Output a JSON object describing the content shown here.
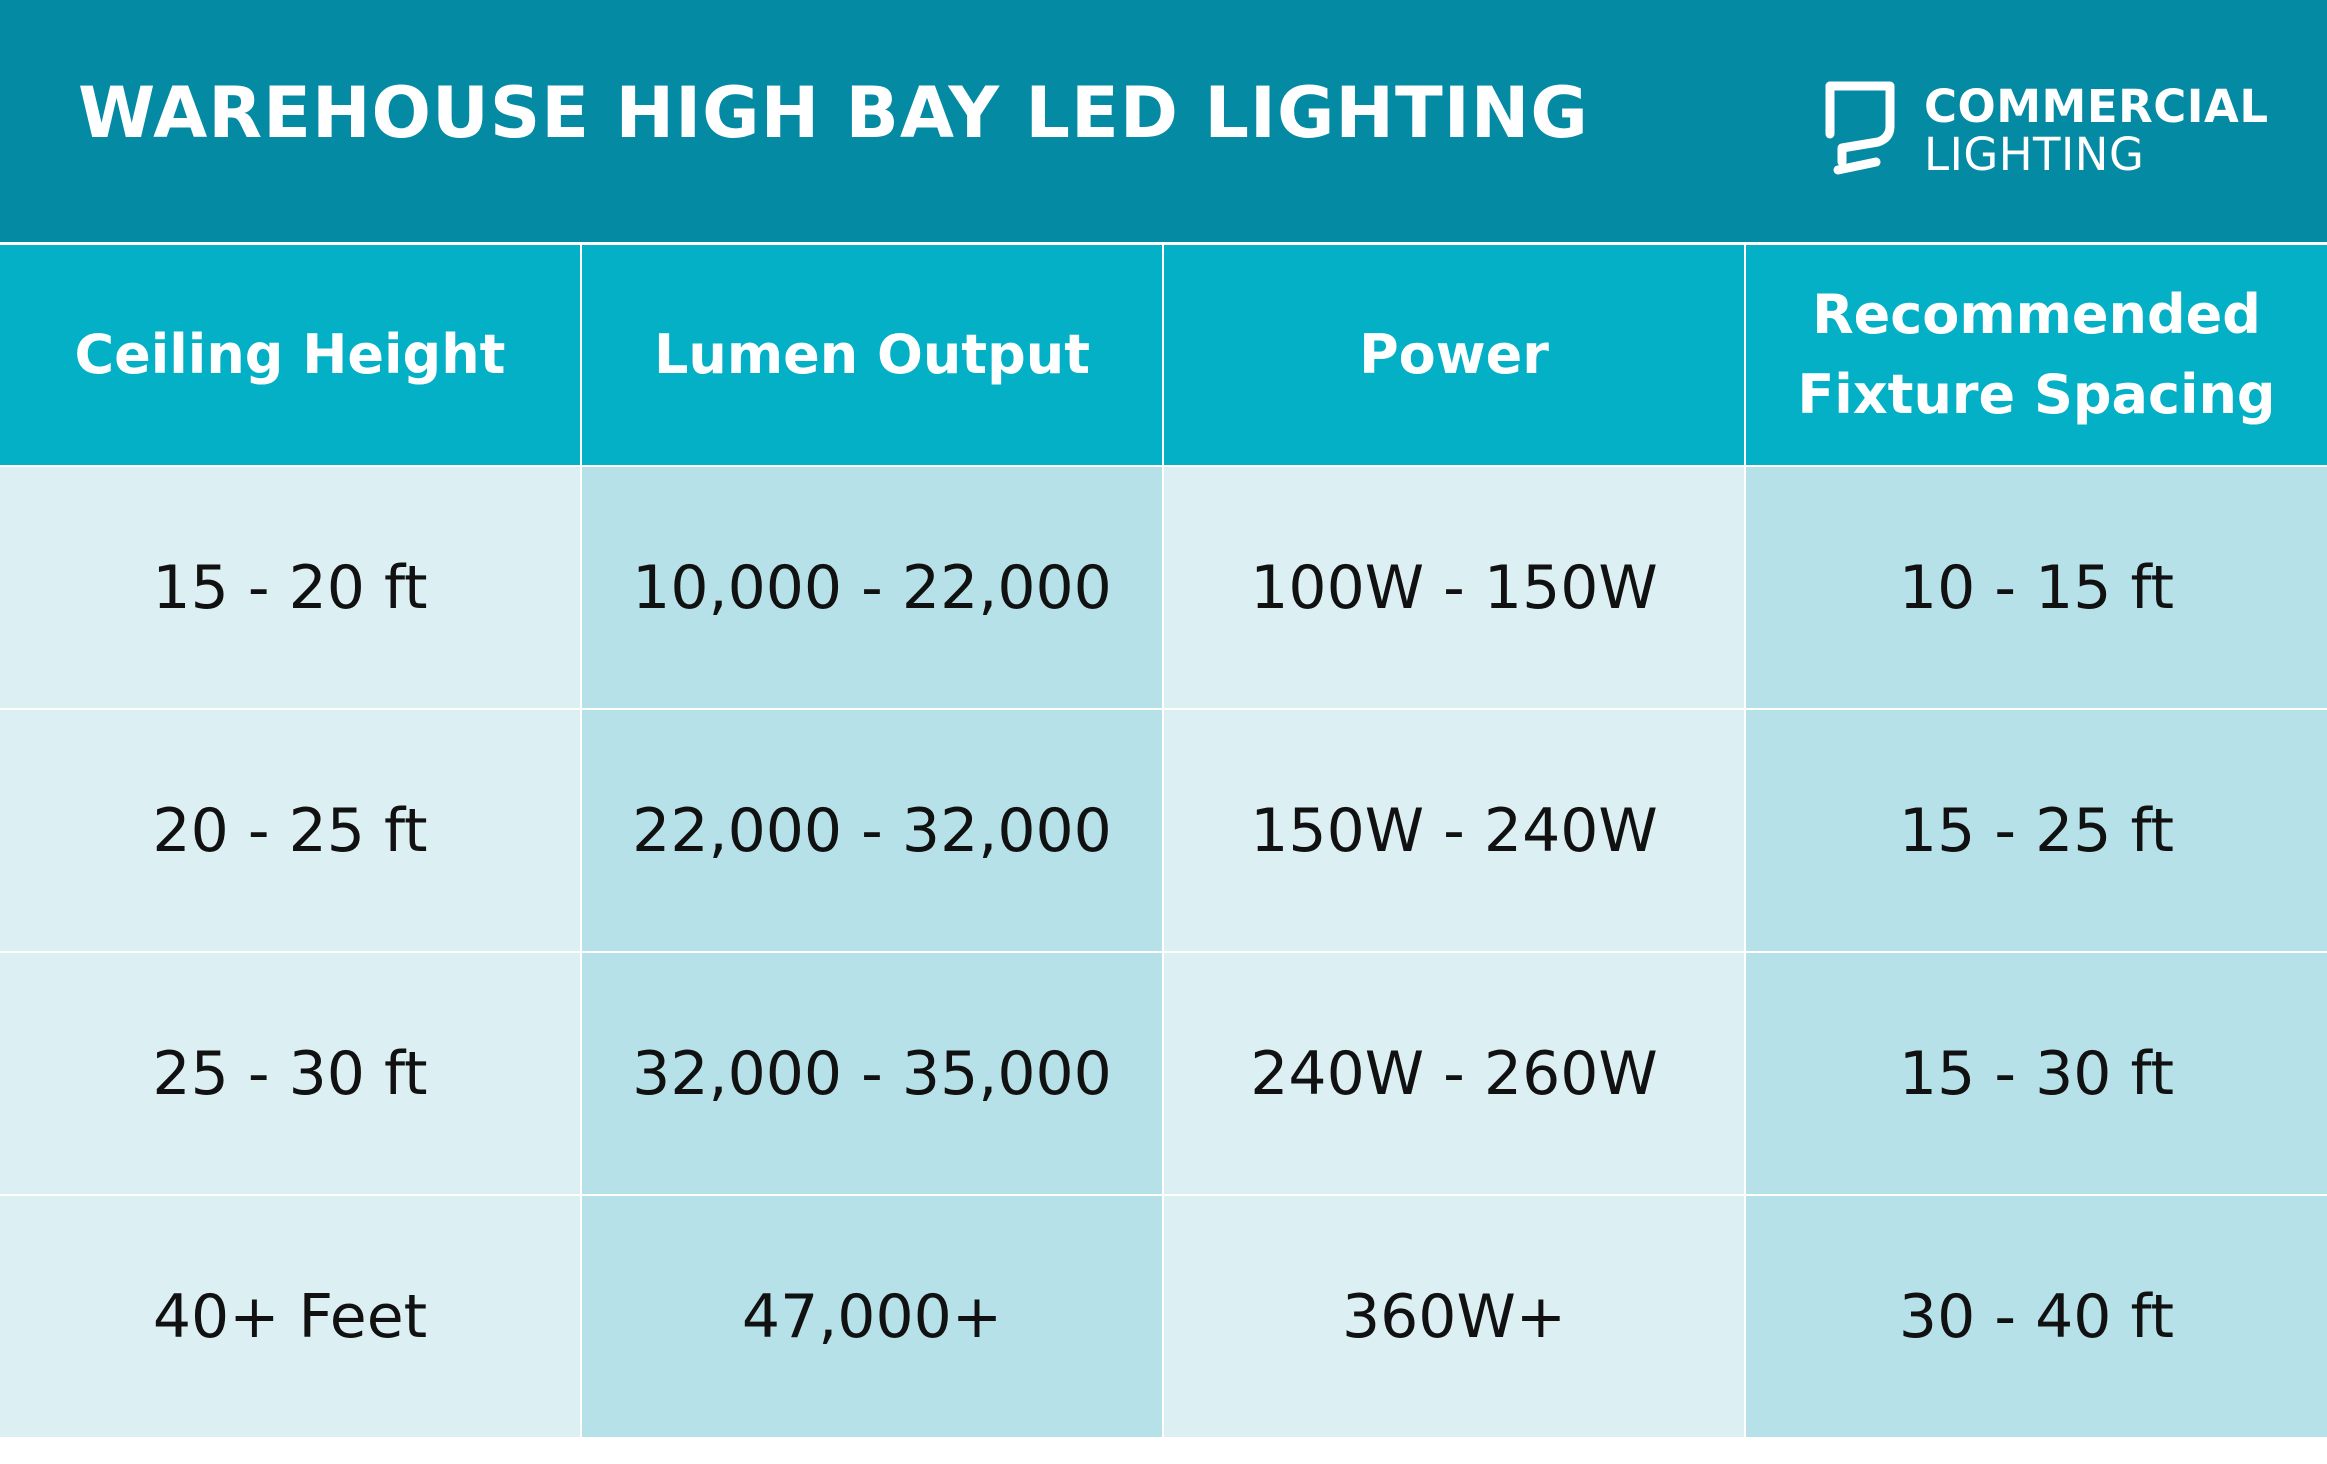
{
  "header": {
    "title": "WAREHOUSE HIGH BAY LED LIGHTING",
    "logo": {
      "line1": "COMMERCIAL",
      "line2": "LIGHTING",
      "icon": "lamp-logo-icon"
    }
  },
  "table": {
    "columns": [
      "Ceiling Height",
      "Lumen Output",
      "Power",
      "Recommended Fixture Spacing"
    ],
    "rows": [
      [
        "15 - 20 ft",
        "10,000 - 22,000",
        "100W - 150W",
        "10 - 15 ft"
      ],
      [
        "20 - 25 ft",
        "22,000 - 32,000",
        "150W - 240W",
        "15 - 25 ft"
      ],
      [
        "25 - 30 ft",
        "32,000 - 35,000",
        "240W - 260W",
        "15 - 30 ft"
      ],
      [
        "40+ Feet",
        "47,000+",
        "360W+",
        "30 - 40 ft"
      ]
    ]
  },
  "colors": {
    "banner": "#058aa4",
    "header_row": "#03b0c5",
    "cell_light": "#dcf0f4",
    "cell_dark": "#b6e1e9",
    "text": "#111111"
  }
}
